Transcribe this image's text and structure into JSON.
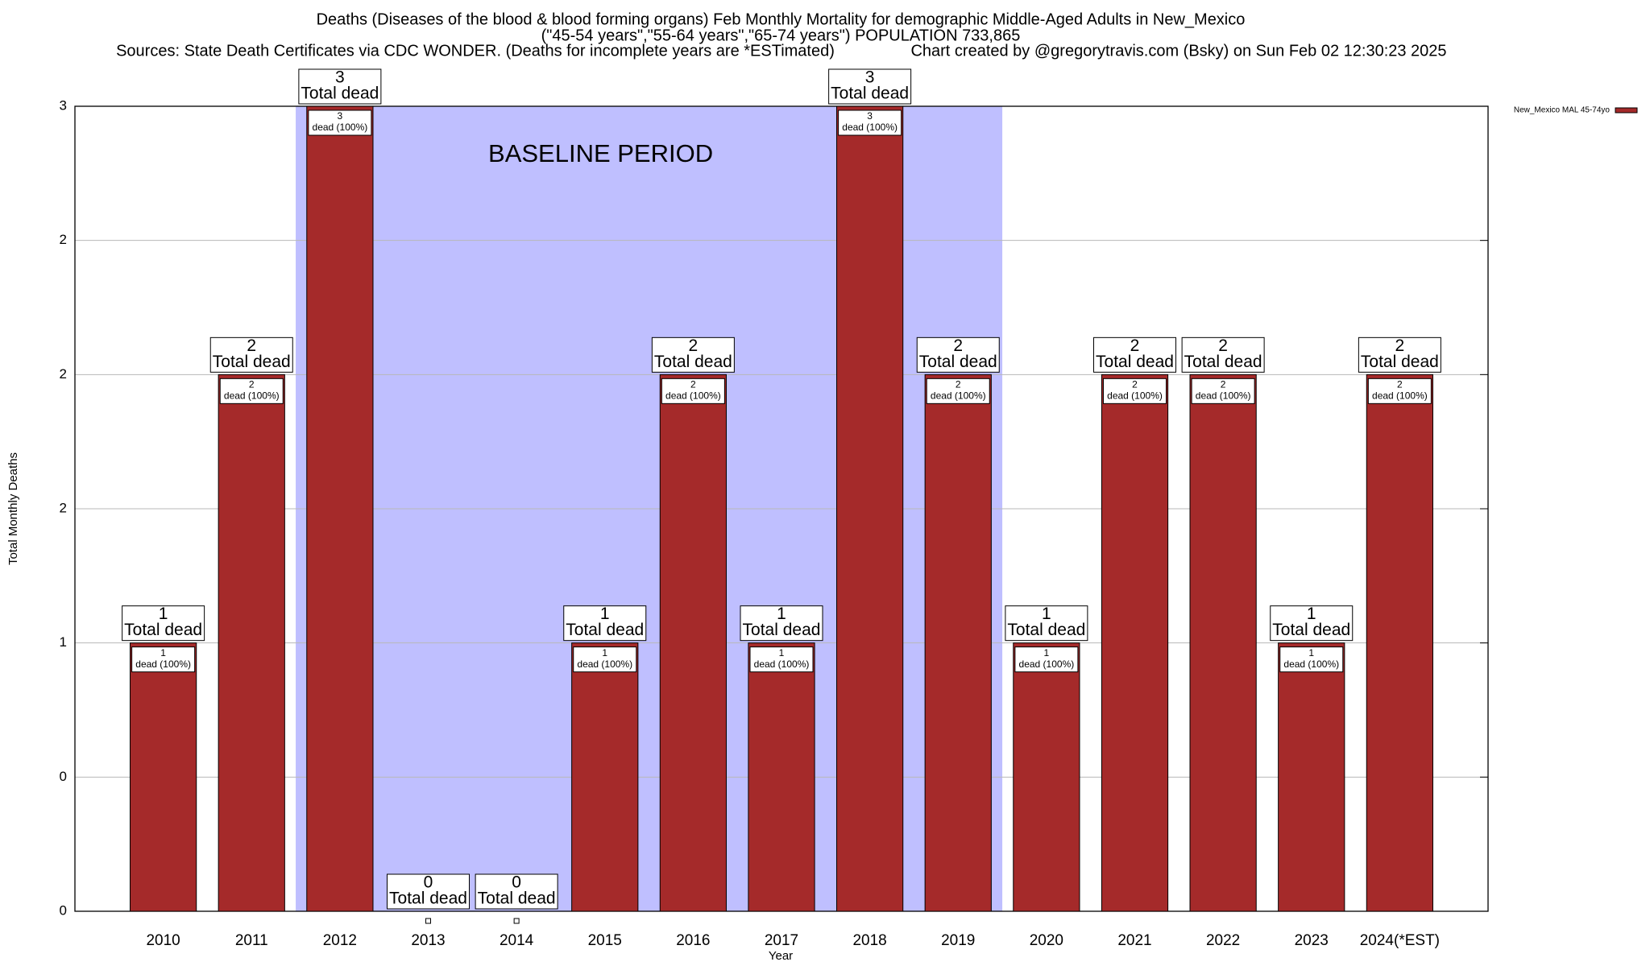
{
  "chart_data": {
    "type": "bar",
    "title": "Deaths (Diseases of the blood & blood forming organs) Feb Monthly Mortality for demographic Middle-Aged Adults in New_Mexico",
    "subtitle": "(\"45-54 years\",\"55-64 years\",\"65-74 years\") POPULATION 733,865",
    "source": "Sources: State Death Certificates via CDC WONDER. (Deaths for incomplete years are *ESTimated)",
    "credit": "Chart created by @gregorytravis.com (Bsky) on Sun Feb 02 12:30:23 2025",
    "x_label": "Year",
    "y_label": "Total Monthly Deaths",
    "categories": [
      "2010",
      "2011",
      "2012",
      "2013",
      "2014",
      "2015",
      "2016",
      "2017",
      "2018",
      "2019",
      "2020",
      "2021",
      "2022",
      "2023",
      "2024(*EST)"
    ],
    "series": [
      {
        "name": "New_Mexico MAL 45-74yo",
        "color": "#a52a2a",
        "values": [
          1,
          2,
          3,
          0,
          0,
          1,
          2,
          1,
          3,
          2,
          1,
          2,
          2,
          1,
          2
        ]
      }
    ],
    "total_label": "Total dead",
    "inside_label": "dead (100%)",
    "baseline_period": {
      "label": "BASELINE PERIOD",
      "start": "2012",
      "end": "2019",
      "color": "#bfbfff"
    },
    "ylim": [
      0,
      3
    ],
    "yticks": [
      0,
      {
        "value": 0.5,
        "label": "0"
      },
      1,
      {
        "value": 1.5,
        "label": "2"
      },
      2,
      {
        "value": 2.5,
        "label": "2"
      },
      3
    ],
    "grid": true,
    "legend": "top-right"
  }
}
